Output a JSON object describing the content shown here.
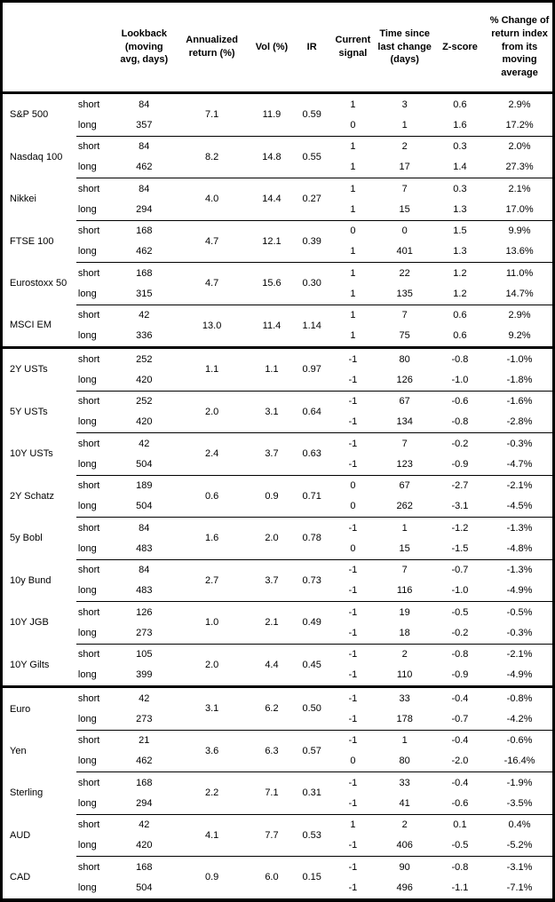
{
  "table": {
    "headers": {
      "asset": "",
      "horizon": "",
      "lookback": "Lookback\n(moving\navg, days)",
      "annualized_return": "Annualized\nreturn (%)",
      "vol": "Vol (%)",
      "ir": "IR",
      "current_signal": "Current\nsignal",
      "time_since_change": "Time since\nlast change\n(days)",
      "z_score": "Z-score",
      "pct_change": "% Change of\nreturn index\nfrom its\nmoving\naverage"
    },
    "sections": [
      {
        "groups": [
          {
            "asset": "S&P 500",
            "annualized_return": "7.1",
            "vol": "11.9",
            "ir": "0.59",
            "rows": [
              {
                "horizon": "short",
                "lookback": "84",
                "signal": "1",
                "days": "3",
                "z": "0.6",
                "pct": "2.9%"
              },
              {
                "horizon": "long",
                "lookback": "357",
                "signal": "0",
                "days": "1",
                "z": "1.6",
                "pct": "17.2%"
              }
            ]
          },
          {
            "asset": "Nasdaq 100",
            "annualized_return": "8.2",
            "vol": "14.8",
            "ir": "0.55",
            "rows": [
              {
                "horizon": "short",
                "lookback": "84",
                "signal": "1",
                "days": "2",
                "z": "0.3",
                "pct": "2.0%"
              },
              {
                "horizon": "long",
                "lookback": "462",
                "signal": "1",
                "days": "17",
                "z": "1.4",
                "pct": "27.3%"
              }
            ]
          },
          {
            "asset": "Nikkei",
            "annualized_return": "4.0",
            "vol": "14.4",
            "ir": "0.27",
            "rows": [
              {
                "horizon": "short",
                "lookback": "84",
                "signal": "1",
                "days": "7",
                "z": "0.3",
                "pct": "2.1%"
              },
              {
                "horizon": "long",
                "lookback": "294",
                "signal": "1",
                "days": "15",
                "z": "1.3",
                "pct": "17.0%"
              }
            ]
          },
          {
            "asset": "FTSE 100",
            "annualized_return": "4.7",
            "vol": "12.1",
            "ir": "0.39",
            "rows": [
              {
                "horizon": "short",
                "lookback": "168",
                "signal": "0",
                "days": "0",
                "z": "1.5",
                "pct": "9.9%"
              },
              {
                "horizon": "long",
                "lookback": "462",
                "signal": "1",
                "days": "401",
                "z": "1.3",
                "pct": "13.6%"
              }
            ]
          },
          {
            "asset": "Eurostoxx 50",
            "annualized_return": "4.7",
            "vol": "15.6",
            "ir": "0.30",
            "rows": [
              {
                "horizon": "short",
                "lookback": "168",
                "signal": "1",
                "days": "22",
                "z": "1.2",
                "pct": "11.0%"
              },
              {
                "horizon": "long",
                "lookback": "315",
                "signal": "1",
                "days": "135",
                "z": "1.2",
                "pct": "14.7%"
              }
            ]
          },
          {
            "asset": "MSCI EM",
            "annualized_return": "13.0",
            "vol": "11.4",
            "ir": "1.14",
            "rows": [
              {
                "horizon": "short",
                "lookback": "42",
                "signal": "1",
                "days": "7",
                "z": "0.6",
                "pct": "2.9%"
              },
              {
                "horizon": "long",
                "lookback": "336",
                "signal": "1",
                "days": "75",
                "z": "0.6",
                "pct": "9.2%"
              }
            ]
          }
        ]
      },
      {
        "groups": [
          {
            "asset": "2Y USTs",
            "annualized_return": "1.1",
            "vol": "1.1",
            "ir": "0.97",
            "rows": [
              {
                "horizon": "short",
                "lookback": "252",
                "signal": "-1",
                "days": "80",
                "z": "-0.8",
                "pct": "-1.0%"
              },
              {
                "horizon": "long",
                "lookback": "420",
                "signal": "-1",
                "days": "126",
                "z": "-1.0",
                "pct": "-1.8%"
              }
            ]
          },
          {
            "asset": "5Y USTs",
            "annualized_return": "2.0",
            "vol": "3.1",
            "ir": "0.64",
            "rows": [
              {
                "horizon": "short",
                "lookback": "252",
                "signal": "-1",
                "days": "67",
                "z": "-0.6",
                "pct": "-1.6%"
              },
              {
                "horizon": "long",
                "lookback": "420",
                "signal": "-1",
                "days": "134",
                "z": "-0.8",
                "pct": "-2.8%"
              }
            ]
          },
          {
            "asset": "10Y USTs",
            "annualized_return": "2.4",
            "vol": "3.7",
            "ir": "0.63",
            "rows": [
              {
                "horizon": "short",
                "lookback": "42",
                "signal": "-1",
                "days": "7",
                "z": "-0.2",
                "pct": "-0.3%"
              },
              {
                "horizon": "long",
                "lookback": "504",
                "signal": "-1",
                "days": "123",
                "z": "-0.9",
                "pct": "-4.7%"
              }
            ]
          },
          {
            "asset": "2Y Schatz",
            "annualized_return": "0.6",
            "vol": "0.9",
            "ir": "0.71",
            "rows": [
              {
                "horizon": "short",
                "lookback": "189",
                "signal": "0",
                "days": "67",
                "z": "-2.7",
                "pct": "-2.1%"
              },
              {
                "horizon": "long",
                "lookback": "504",
                "signal": "0",
                "days": "262",
                "z": "-3.1",
                "pct": "-4.5%"
              }
            ]
          },
          {
            "asset": "5y Bobl",
            "annualized_return": "1.6",
            "vol": "2.0",
            "ir": "0.78",
            "rows": [
              {
                "horizon": "short",
                "lookback": "84",
                "signal": "-1",
                "days": "1",
                "z": "-1.2",
                "pct": "-1.3%"
              },
              {
                "horizon": "long",
                "lookback": "483",
                "signal": "0",
                "days": "15",
                "z": "-1.5",
                "pct": "-4.8%"
              }
            ]
          },
          {
            "asset": "10y Bund",
            "annualized_return": "2.7",
            "vol": "3.7",
            "ir": "0.73",
            "rows": [
              {
                "horizon": "short",
                "lookback": "84",
                "signal": "-1",
                "days": "7",
                "z": "-0.7",
                "pct": "-1.3%"
              },
              {
                "horizon": "long",
                "lookback": "483",
                "signal": "-1",
                "days": "116",
                "z": "-1.0",
                "pct": "-4.9%"
              }
            ]
          },
          {
            "asset": "10Y JGB",
            "annualized_return": "1.0",
            "vol": "2.1",
            "ir": "0.49",
            "rows": [
              {
                "horizon": "short",
                "lookback": "126",
                "signal": "-1",
                "days": "19",
                "z": "-0.5",
                "pct": "-0.5%"
              },
              {
                "horizon": "long",
                "lookback": "273",
                "signal": "-1",
                "days": "18",
                "z": "-0.2",
                "pct": "-0.3%"
              }
            ]
          },
          {
            "asset": "10Y Gilts",
            "annualized_return": "2.0",
            "vol": "4.4",
            "ir": "0.45",
            "rows": [
              {
                "horizon": "short",
                "lookback": "105",
                "signal": "-1",
                "days": "2",
                "z": "-0.8",
                "pct": "-2.1%"
              },
              {
                "horizon": "long",
                "lookback": "399",
                "signal": "-1",
                "days": "110",
                "z": "-0.9",
                "pct": "-4.9%"
              }
            ]
          }
        ]
      },
      {
        "groups": [
          {
            "asset": "Euro",
            "annualized_return": "3.1",
            "vol": "6.2",
            "ir": "0.50",
            "rows": [
              {
                "horizon": "short",
                "lookback": "42",
                "signal": "-1",
                "days": "33",
                "z": "-0.4",
                "pct": "-0.8%"
              },
              {
                "horizon": "long",
                "lookback": "273",
                "signal": "-1",
                "days": "178",
                "z": "-0.7",
                "pct": "-4.2%"
              }
            ]
          },
          {
            "asset": "Yen",
            "annualized_return": "3.6",
            "vol": "6.3",
            "ir": "0.57",
            "rows": [
              {
                "horizon": "short",
                "lookback": "21",
                "signal": "-1",
                "days": "1",
                "z": "-0.4",
                "pct": "-0.6%"
              },
              {
                "horizon": "long",
                "lookback": "462",
                "signal": "0",
                "days": "80",
                "z": "-2.0",
                "pct": "-16.4%"
              }
            ]
          },
          {
            "asset": "Sterling",
            "annualized_return": "2.2",
            "vol": "7.1",
            "ir": "0.31",
            "rows": [
              {
                "horizon": "short",
                "lookback": "168",
                "signal": "-1",
                "days": "33",
                "z": "-0.4",
                "pct": "-1.9%"
              },
              {
                "horizon": "long",
                "lookback": "294",
                "signal": "-1",
                "days": "41",
                "z": "-0.6",
                "pct": "-3.5%"
              }
            ]
          },
          {
            "asset": "AUD",
            "annualized_return": "4.1",
            "vol": "7.7",
            "ir": "0.53",
            "rows": [
              {
                "horizon": "short",
                "lookback": "42",
                "signal": "1",
                "days": "2",
                "z": "0.1",
                "pct": "0.4%"
              },
              {
                "horizon": "long",
                "lookback": "420",
                "signal": "-1",
                "days": "406",
                "z": "-0.5",
                "pct": "-5.2%"
              }
            ]
          },
          {
            "asset": "CAD",
            "annualized_return": "0.9",
            "vol": "6.0",
            "ir": "0.15",
            "rows": [
              {
                "horizon": "short",
                "lookback": "168",
                "signal": "-1",
                "days": "90",
                "z": "-0.8",
                "pct": "-3.1%"
              },
              {
                "horizon": "long",
                "lookback": "504",
                "signal": "-1",
                "days": "496",
                "z": "-1.1",
                "pct": "-7.1%"
              }
            ]
          }
        ]
      }
    ]
  }
}
